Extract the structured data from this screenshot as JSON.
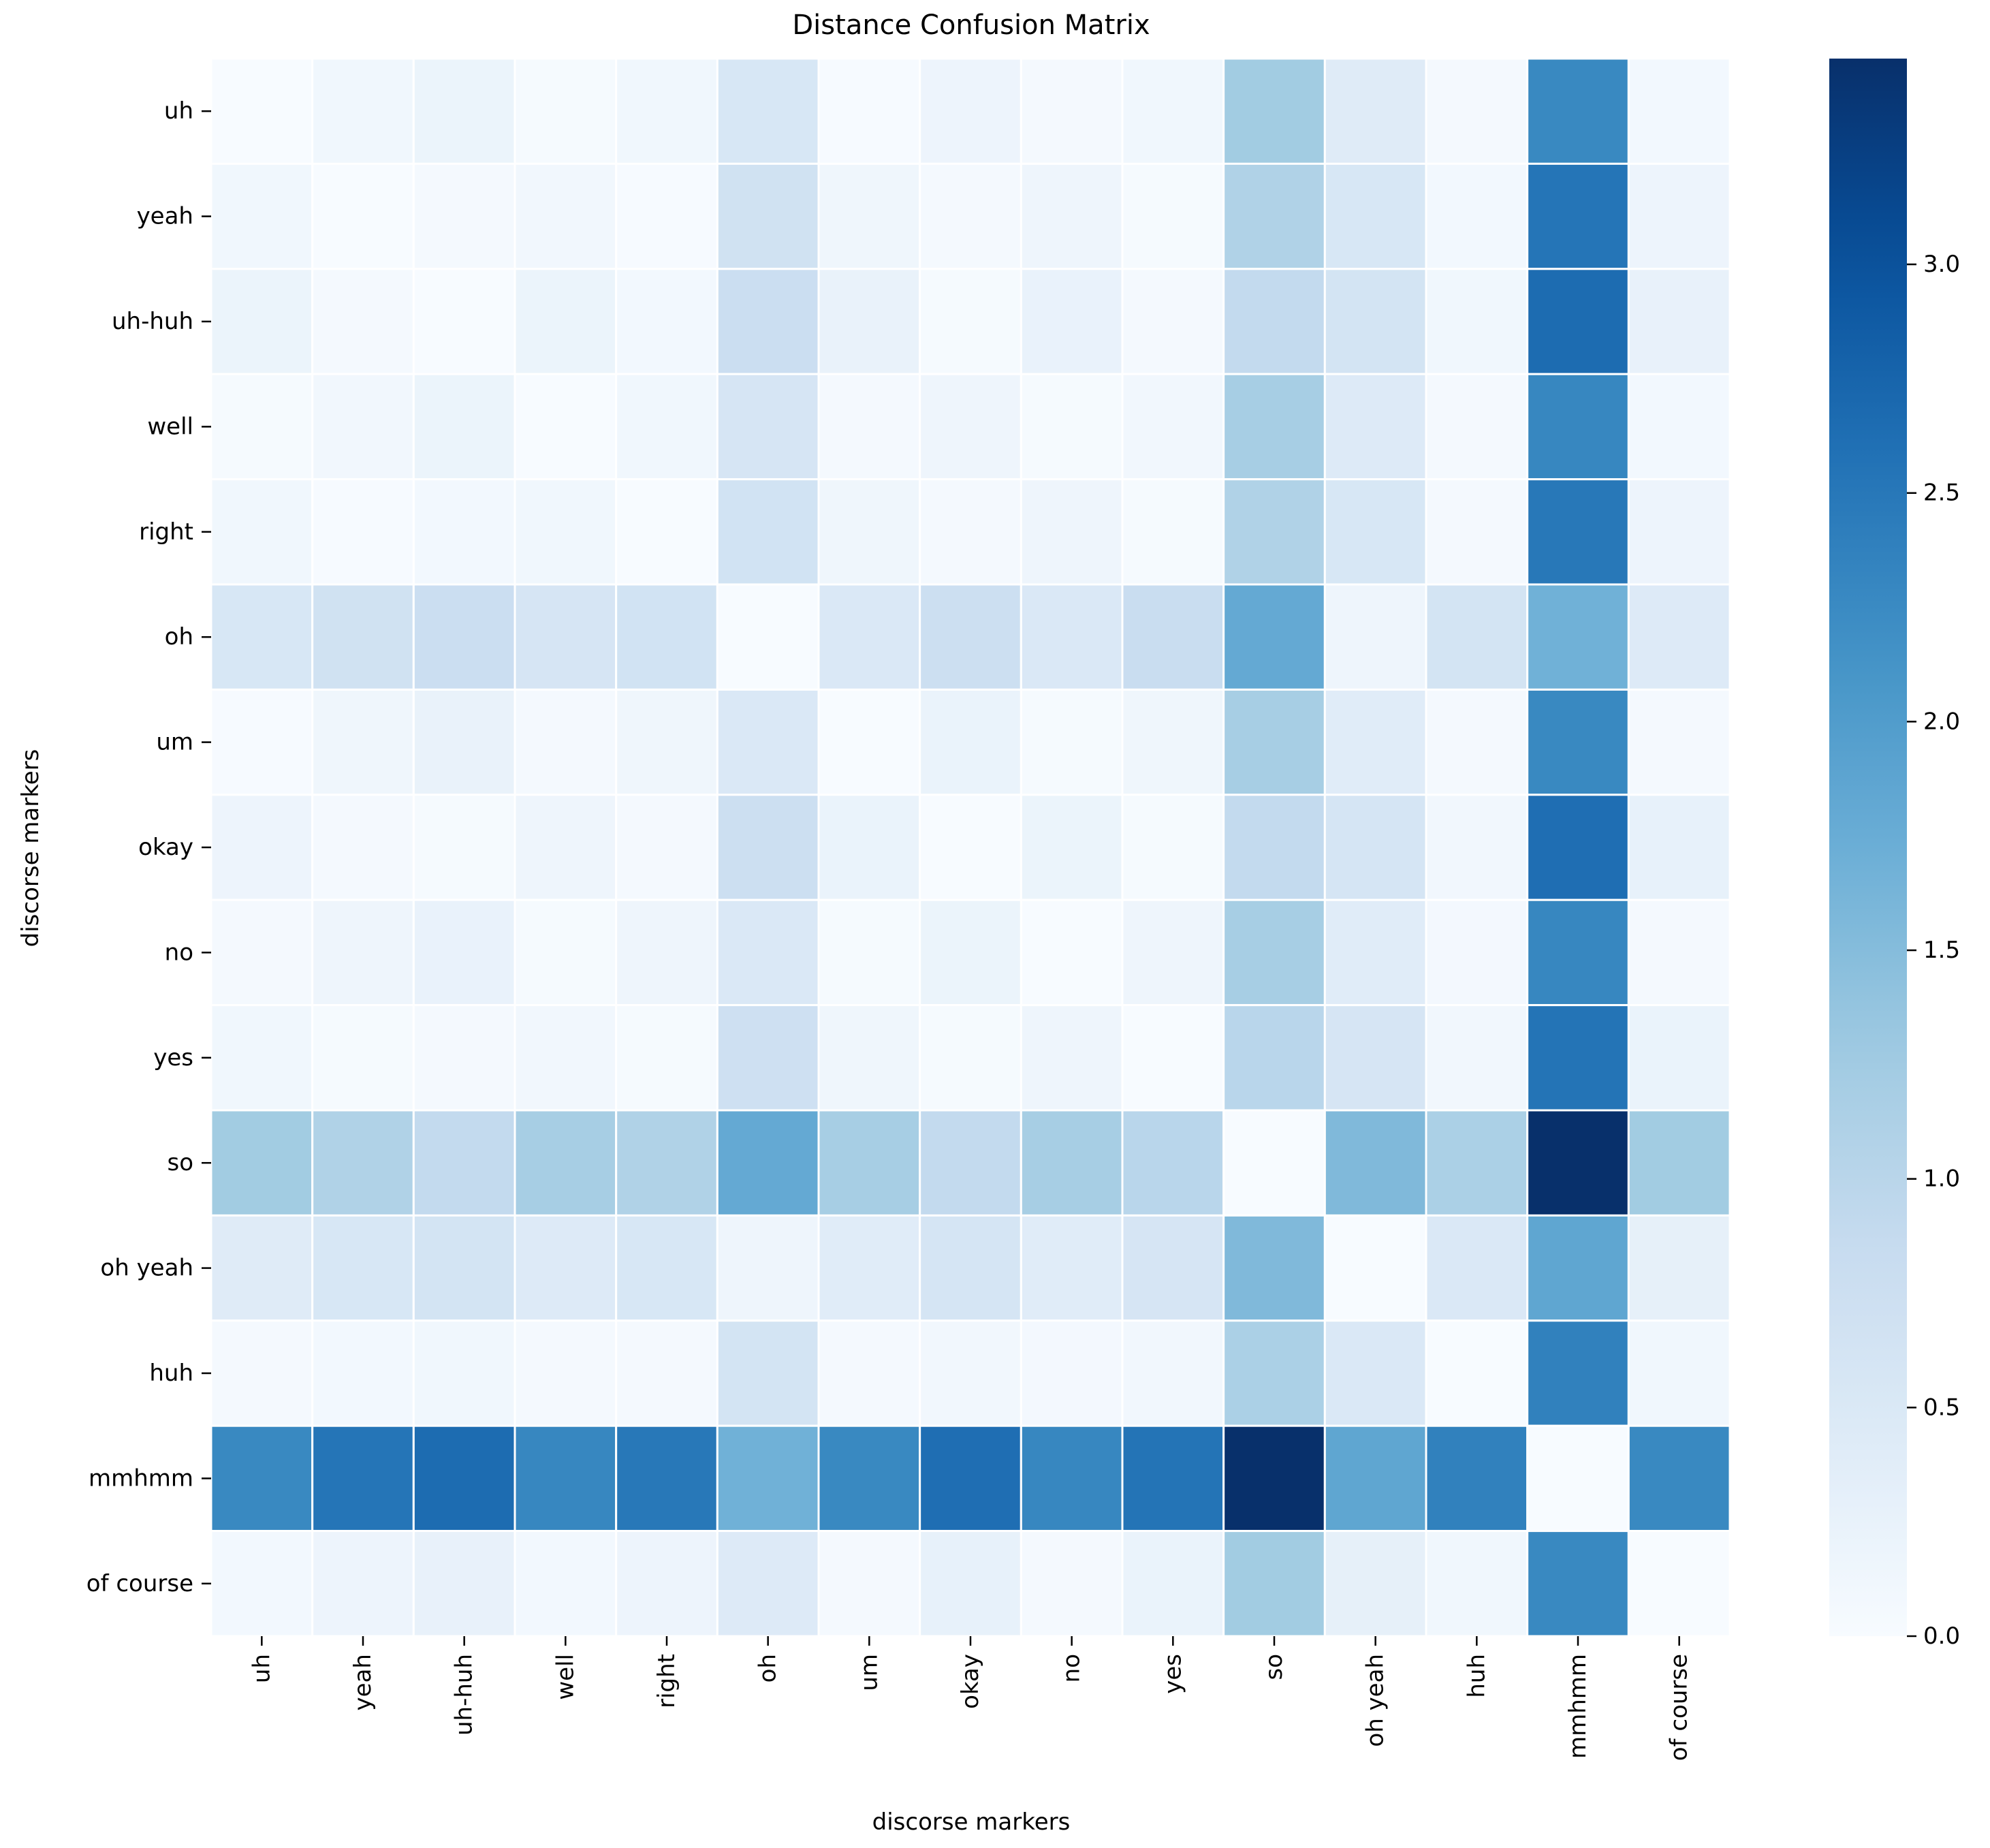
{
  "chart_data": {
    "type": "heatmap",
    "title": "Distance Confusion Matrix",
    "xlabel": "discorse markers",
    "ylabel": "discorse markers",
    "row_labels": [
      "uh",
      "yeah",
      "uh-huh",
      "well",
      "right",
      "oh",
      "um",
      "okay",
      "no",
      "yes",
      "so",
      "oh yeah",
      "huh",
      "mmhmm",
      "of course"
    ],
    "col_labels": [
      "uh",
      "yeah",
      "uh-huh",
      "well",
      "right",
      "oh",
      "um",
      "okay",
      "no",
      "yes",
      "so",
      "oh yeah",
      "huh",
      "mmhmm",
      "of course"
    ],
    "values": [
      [
        0.0,
        0.12,
        0.2,
        0.03,
        0.12,
        0.55,
        0.02,
        0.18,
        0.06,
        0.12,
        1.25,
        0.42,
        0.05,
        2.28,
        0.08
      ],
      [
        0.12,
        0.0,
        0.06,
        0.1,
        0.02,
        0.68,
        0.14,
        0.06,
        0.16,
        0.04,
        1.1,
        0.55,
        0.08,
        2.53,
        0.18
      ],
      [
        0.2,
        0.06,
        0.0,
        0.2,
        0.08,
        0.78,
        0.25,
        0.03,
        0.24,
        0.06,
        0.9,
        0.62,
        0.12,
        2.65,
        0.26
      ],
      [
        0.03,
        0.1,
        0.2,
        0.0,
        0.12,
        0.58,
        0.05,
        0.16,
        0.03,
        0.1,
        1.2,
        0.45,
        0.06,
        2.3,
        0.08
      ],
      [
        0.12,
        0.02,
        0.08,
        0.12,
        0.0,
        0.66,
        0.14,
        0.06,
        0.15,
        0.03,
        1.1,
        0.55,
        0.06,
        2.5,
        0.18
      ],
      [
        0.55,
        0.68,
        0.78,
        0.58,
        0.66,
        0.0,
        0.5,
        0.75,
        0.5,
        0.8,
        1.8,
        0.15,
        0.62,
        1.68,
        0.45
      ],
      [
        0.02,
        0.14,
        0.25,
        0.05,
        0.14,
        0.5,
        0.0,
        0.22,
        0.04,
        0.14,
        1.2,
        0.4,
        0.06,
        2.28,
        0.05
      ],
      [
        0.18,
        0.06,
        0.03,
        0.16,
        0.06,
        0.75,
        0.22,
        0.0,
        0.2,
        0.04,
        0.9,
        0.6,
        0.1,
        2.63,
        0.28
      ],
      [
        0.06,
        0.16,
        0.24,
        0.03,
        0.15,
        0.5,
        0.04,
        0.2,
        0.0,
        0.15,
        1.2,
        0.4,
        0.07,
        2.3,
        0.05
      ],
      [
        0.12,
        0.04,
        0.06,
        0.1,
        0.03,
        0.72,
        0.14,
        0.04,
        0.15,
        0.0,
        1.0,
        0.58,
        0.1,
        2.55,
        0.22
      ],
      [
        1.25,
        1.1,
        0.9,
        1.2,
        1.1,
        1.8,
        1.2,
        0.9,
        1.2,
        1.0,
        0.0,
        1.55,
        1.15,
        3.45,
        1.25
      ],
      [
        0.42,
        0.55,
        0.62,
        0.45,
        0.55,
        0.15,
        0.4,
        0.6,
        0.4,
        0.58,
        1.55,
        0.0,
        0.5,
        1.85,
        0.3
      ],
      [
        0.05,
        0.08,
        0.12,
        0.06,
        0.06,
        0.62,
        0.06,
        0.1,
        0.07,
        0.1,
        1.15,
        0.5,
        0.0,
        2.38,
        0.12
      ],
      [
        2.28,
        2.53,
        2.65,
        2.3,
        2.5,
        1.68,
        2.28,
        2.63,
        2.3,
        2.55,
        3.45,
        1.85,
        2.38,
        0.0,
        2.28
      ],
      [
        0.08,
        0.18,
        0.26,
        0.08,
        0.18,
        0.45,
        0.05,
        0.28,
        0.05,
        0.22,
        1.25,
        0.3,
        0.12,
        2.28,
        0.0
      ]
    ],
    "vmin": 0.0,
    "vmax": 3.45,
    "colormap": "Blues",
    "colorbar": {
      "ticks": [
        0.0,
        0.5,
        1.0,
        1.5,
        2.0,
        2.5,
        3.0
      ],
      "tick_labels": [
        "0.0",
        "0.5",
        "1.0",
        "1.5",
        "2.0",
        "2.5",
        "3.0"
      ]
    }
  }
}
